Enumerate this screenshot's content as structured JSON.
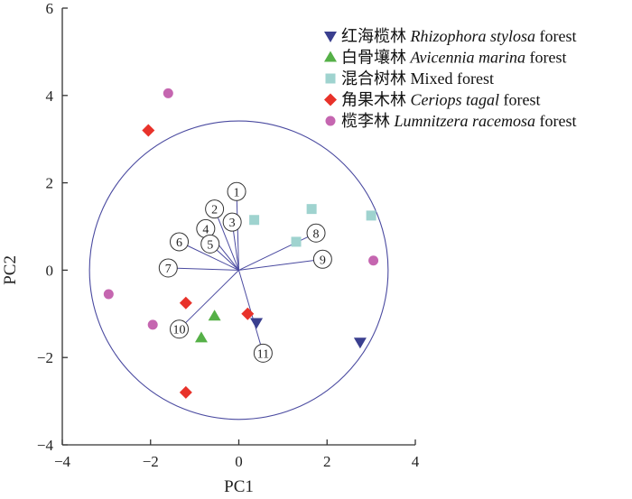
{
  "chart_data": {
    "type": "scatter",
    "title": "",
    "xlabel": "PC1",
    "ylabel": "PC2",
    "xlim": [
      -4,
      4
    ],
    "ylim": [
      -4,
      6
    ],
    "xticks": [
      "−4",
      "−2",
      "0",
      "2",
      "4"
    ],
    "yticks": [
      "−4",
      "−2",
      "0",
      "2",
      "4",
      "6"
    ],
    "grid": false,
    "legend_position": "top-right",
    "circle": {
      "center": [
        0,
        0
      ],
      "radius": 3.4,
      "color": "#4a4aa0"
    },
    "series": [
      {
        "name_cn": "红海榄林",
        "name_latin": "Rhizophora stylosa",
        "name_suffix": "forest",
        "marker": "triangle-down",
        "color": "#3a3f8f",
        "points": [
          [
            0.4,
            -1.2
          ],
          [
            2.75,
            -1.65
          ]
        ]
      },
      {
        "name_cn": "白骨壤林",
        "name_latin": "Avicennia marina",
        "name_suffix": "forest",
        "marker": "triangle-up",
        "color": "#55b047",
        "points": [
          [
            -0.55,
            -1.05
          ],
          [
            -0.85,
            -1.55
          ]
        ]
      },
      {
        "name_cn": "混合树林",
        "name_latin": "",
        "name_suffix": "Mixed forest",
        "marker": "square",
        "color": "#9fd3cf",
        "points": [
          [
            0.35,
            1.15
          ],
          [
            1.65,
            1.4
          ],
          [
            1.3,
            0.65
          ],
          [
            3.0,
            1.25
          ]
        ]
      },
      {
        "name_cn": "角果木林",
        "name_latin": "Ceriops tagal",
        "name_suffix": "forest",
        "marker": "diamond",
        "color": "#e8322a",
        "points": [
          [
            -2.05,
            3.2
          ],
          [
            -1.2,
            -0.75
          ],
          [
            0.2,
            -1.0
          ],
          [
            -1.2,
            -2.8
          ]
        ]
      },
      {
        "name_cn": "榄李林",
        "name_latin": "Lumnitzera racemosa",
        "name_suffix": "forest",
        "marker": "circle",
        "color": "#c566b0",
        "points": [
          [
            -1.6,
            4.05
          ],
          [
            -2.95,
            -0.55
          ],
          [
            -1.95,
            -1.25
          ],
          [
            3.05,
            0.22
          ]
        ]
      }
    ],
    "loadings": [
      {
        "label": "1",
        "glyph": "①",
        "x": -0.05,
        "y": 1.8
      },
      {
        "label": "2",
        "glyph": "②",
        "x": -0.55,
        "y": 1.4
      },
      {
        "label": "3",
        "glyph": "③",
        "x": -0.15,
        "y": 1.1
      },
      {
        "label": "4",
        "glyph": "④",
        "x": -0.75,
        "y": 0.95
      },
      {
        "label": "5",
        "glyph": "⑤",
        "x": -0.65,
        "y": 0.6
      },
      {
        "label": "6",
        "glyph": "⑥",
        "x": -1.35,
        "y": 0.65
      },
      {
        "label": "7",
        "glyph": "⑦",
        "x": -1.6,
        "y": 0.05
      },
      {
        "label": "8",
        "glyph": "⑧",
        "x": 1.75,
        "y": 0.85
      },
      {
        "label": "9",
        "glyph": "⑨",
        "x": 1.9,
        "y": 0.25
      },
      {
        "label": "10",
        "glyph": "⑩",
        "x": -1.35,
        "y": -1.35
      },
      {
        "label": "11",
        "glyph": "⑪",
        "x": 0.55,
        "y": -1.9
      }
    ]
  }
}
